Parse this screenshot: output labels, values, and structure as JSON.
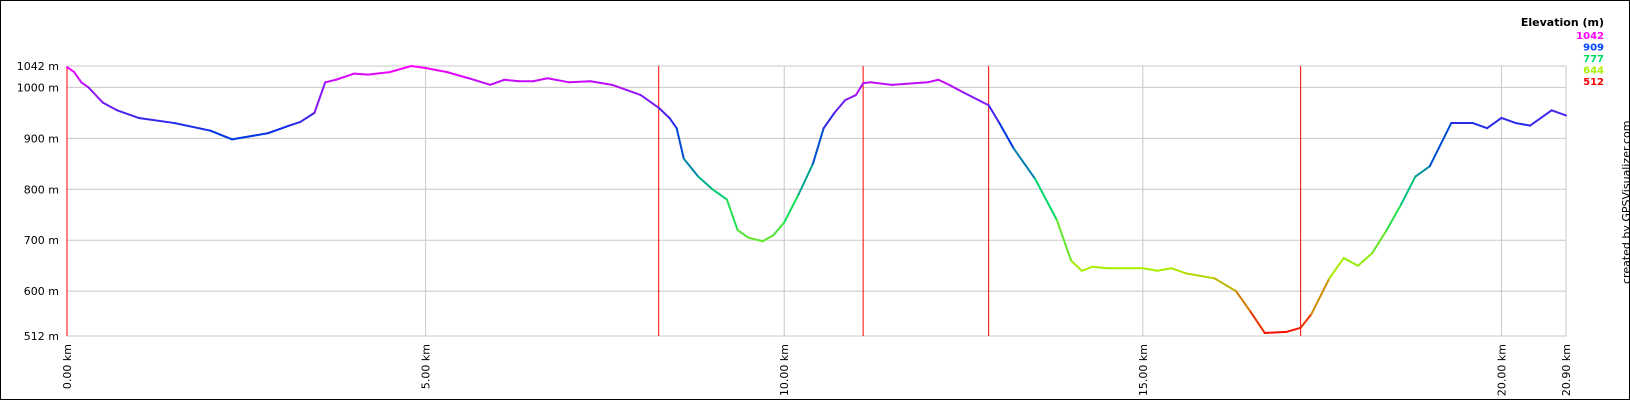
{
  "chart_data": {
    "type": "line",
    "title": "",
    "xlabel": "",
    "ylabel": "",
    "x_unit": "km",
    "y_unit": "m",
    "xlim": [
      0,
      20.9
    ],
    "ylim": [
      512,
      1042
    ],
    "grid": true,
    "legend_position": "top-right",
    "x_ticks": [
      {
        "value": 0,
        "label": "0.00 km"
      },
      {
        "value": 5,
        "label": "5.00 km"
      },
      {
        "value": 10,
        "label": "10.00 km"
      },
      {
        "value": 15,
        "label": "15.00 km"
      },
      {
        "value": 20,
        "label": "20.00 km"
      },
      {
        "value": 20.9,
        "label": "20.90 km"
      }
    ],
    "y_ticks": [
      {
        "value": 512,
        "label": "512 m"
      },
      {
        "value": 600,
        "label": "600 m"
      },
      {
        "value": 700,
        "label": "700 m"
      },
      {
        "value": 800,
        "label": "800 m"
      },
      {
        "value": 900,
        "label": "900 m"
      },
      {
        "value": 1000,
        "label": "1000 m"
      },
      {
        "value": 1042,
        "label": "1042 m"
      }
    ],
    "markers_km": [
      0,
      8.25,
      11.1,
      12.85,
      17.2
    ],
    "legend": {
      "title": "Elevation (m)",
      "entries": [
        {
          "label": "1042",
          "color": "#ff00ff"
        },
        {
          "label": "909",
          "color": "#0044ff"
        },
        {
          "label": "777",
          "color": "#00dd66"
        },
        {
          "label": "644",
          "color": "#aaee00"
        },
        {
          "label": "512",
          "color": "#ff0000"
        }
      ]
    },
    "series": [
      {
        "x": [
          0,
          0.1,
          0.2,
          0.3,
          0.5,
          0.7,
          1.0,
          1.5,
          2.0,
          2.3,
          2.8,
          3.1,
          3.25,
          3.45,
          3.6,
          3.75,
          4.0,
          4.2,
          4.5,
          4.8,
          5.0,
          5.3,
          5.6,
          5.9,
          6.1,
          6.3,
          6.5,
          6.7,
          7.0,
          7.3,
          7.6,
          7.8,
          8.0,
          8.25,
          8.4,
          8.5,
          8.6,
          8.8,
          9.0,
          9.2,
          9.35,
          9.5,
          9.7,
          9.85,
          10.0,
          10.2,
          10.4,
          10.55,
          10.7,
          10.85,
          11.0,
          11.1,
          11.2,
          11.5,
          12.0,
          12.15,
          12.3,
          12.5,
          12.85,
          13.0,
          13.2,
          13.5,
          13.8,
          14.0,
          14.15,
          14.3,
          14.5,
          15.0,
          15.2,
          15.4,
          15.6,
          16.0,
          16.3,
          16.5,
          16.7,
          17.0,
          17.2,
          17.35,
          17.6,
          17.8,
          18.0,
          18.2,
          18.4,
          18.6,
          18.8,
          19.0,
          19.3,
          19.6,
          19.8,
          20.0,
          20.2,
          20.4,
          20.7,
          20.9
        ],
        "values": [
          1040,
          1030,
          1010,
          1000,
          970,
          955,
          940,
          930,
          915,
          898,
          910,
          925,
          932,
          950,
          1010,
          1015,
          1027,
          1025,
          1030,
          1042,
          1038,
          1030,
          1018,
          1005,
          1015,
          1012,
          1012,
          1018,
          1010,
          1012,
          1005,
          995,
          985,
          960,
          940,
          920,
          860,
          825,
          800,
          780,
          720,
          705,
          698,
          710,
          735,
          790,
          850,
          920,
          950,
          975,
          985,
          1008,
          1010,
          1005,
          1010,
          1015,
          1005,
          990,
          965,
          930,
          880,
          820,
          740,
          660,
          640,
          648,
          645,
          645,
          640,
          645,
          635,
          625,
          600,
          560,
          518,
          520,
          528,
          555,
          625,
          665,
          650,
          675,
          720,
          770,
          825,
          845,
          930,
          930,
          920,
          940,
          930,
          925,
          955,
          945
        ]
      }
    ]
  },
  "credit": "created by GPSVisualizer.com"
}
